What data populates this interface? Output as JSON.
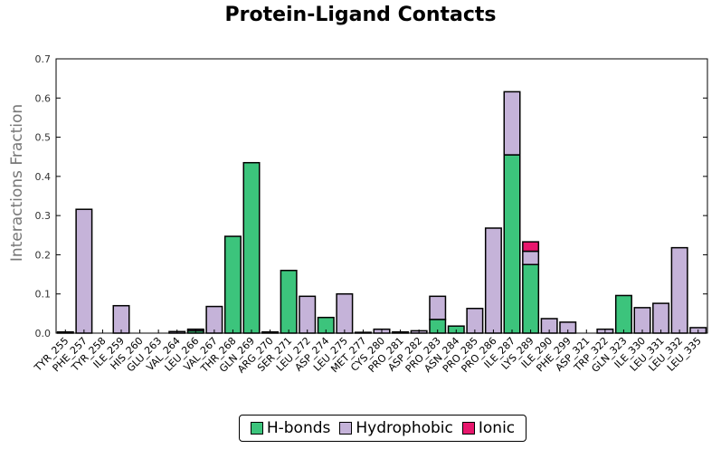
{
  "chart_data": {
    "type": "bar",
    "stacked": true,
    "title": "Protein-Ligand Contacts",
    "xlabel": "",
    "ylabel": "Interactions Fraction",
    "ylim": [
      0,
      0.7
    ],
    "yticks": [
      "0.0",
      "0.1",
      "0.2",
      "0.3",
      "0.4",
      "0.5",
      "0.6",
      "0.7"
    ],
    "grid": false,
    "legend_position": "bottom",
    "categories": [
      "TYR_255",
      "PHE_257",
      "TYR_258",
      "ILE_259",
      "HIS_260",
      "GLU_263",
      "VAL_264",
      "LEU_266",
      "VAL_267",
      "THR_268",
      "GLN_269",
      "ARG_270",
      "SER_271",
      "LEU_272",
      "ASP_274",
      "LEU_275",
      "MET_277",
      "CYS_280",
      "PRO_281",
      "ASP_282",
      "PRO_283",
      "ASN_284",
      "PRO_285",
      "PRO_286",
      "ILE_287",
      "LYS_289",
      "ILE_290",
      "PHE_299",
      "ASP_321",
      "TRP_322",
      "GLN_323",
      "ILE_330",
      "LEU_331",
      "LEU_332",
      "LEU_335"
    ],
    "series": [
      {
        "name": "H-bonds",
        "color": "#3cc47c",
        "values": [
          0,
          0,
          0,
          0,
          0,
          0,
          0,
          0.006,
          0,
          0.247,
          0.435,
          0,
          0.16,
          0,
          0.04,
          0,
          0,
          0,
          0,
          0,
          0.035,
          0.018,
          0,
          0,
          0.455,
          0.175,
          0,
          0,
          0,
          0,
          0.096,
          0,
          0,
          0,
          0
        ]
      },
      {
        "name": "Hydrophobic",
        "color": "#c5b3d9",
        "values": [
          0.003,
          0.316,
          0,
          0.07,
          0,
          0,
          0.004,
          0.004,
          0.068,
          0,
          0,
          0.003,
          0,
          0.094,
          0,
          0.1,
          0.002,
          0.01,
          0.003,
          0.006,
          0.059,
          0,
          0.063,
          0.268,
          0.161,
          0.034,
          0.037,
          0.028,
          0,
          0.01,
          0,
          0.065,
          0.076,
          0.218,
          0.014
        ]
      },
      {
        "name": "Ionic",
        "color": "#e8176d",
        "values": [
          0,
          0,
          0,
          0,
          0,
          0,
          0,
          0,
          0,
          0,
          0,
          0,
          0,
          0,
          0,
          0,
          0,
          0,
          0,
          0,
          0,
          0,
          0,
          0,
          0,
          0.024,
          0,
          0,
          0,
          0,
          0,
          0,
          0,
          0,
          0
        ]
      }
    ]
  }
}
